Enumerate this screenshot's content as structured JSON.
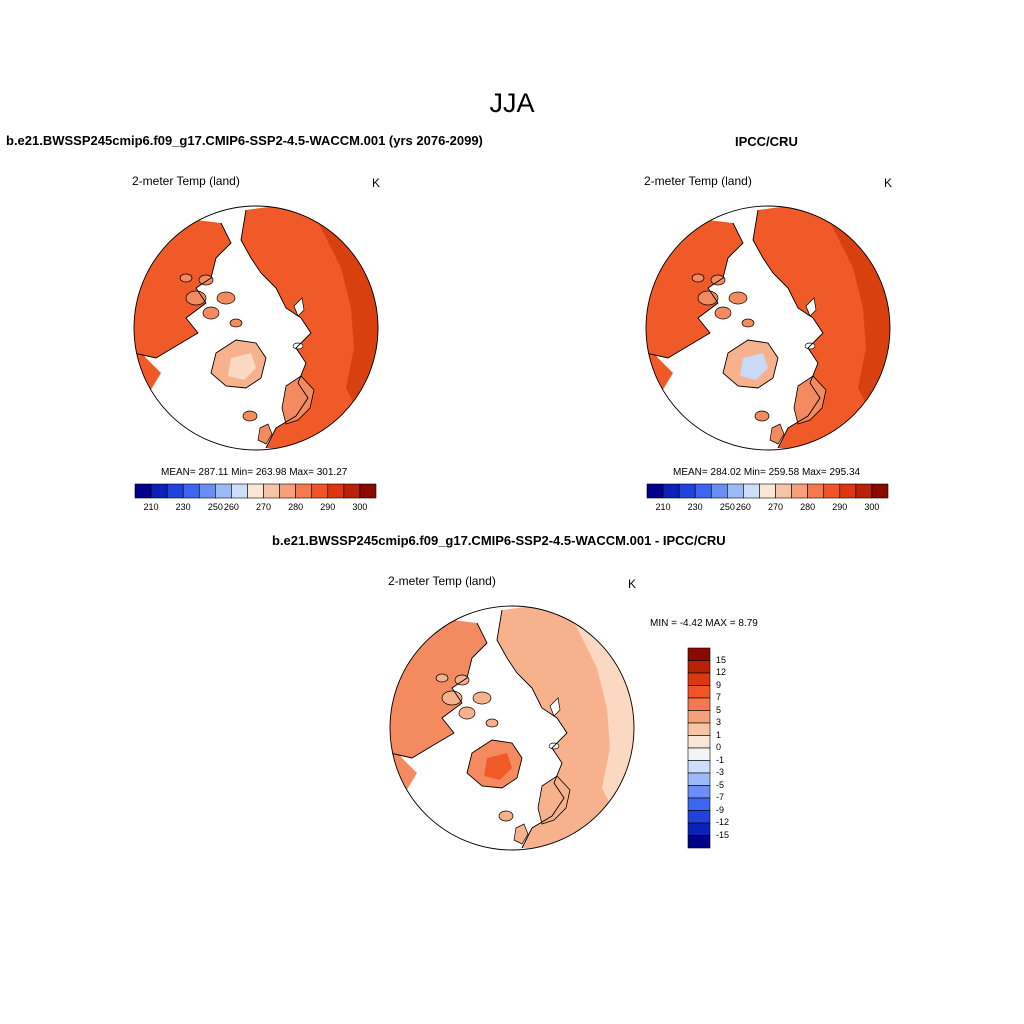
{
  "title": "JJA",
  "panels": [
    {
      "title": "b.e21.BWSSP245cmip6.f09_g17.CMIP6-SSP2-4.5-WACCM.001 (yrs 2076-2099)",
      "variable": "2-meter Temp (land)",
      "units": "K",
      "stats": "MEAN= 287.11  Min= 263.98  Max= 301.27"
    },
    {
      "title": "IPCC/CRU",
      "variable": "2-meter Temp (land)",
      "units": "K",
      "stats": "MEAN= 284.02  Min= 259.58  Max= 295.34"
    },
    {
      "title": "b.e21.BWSSP245cmip6.f09_g17.CMIP6-SSP2-4.5-WACCM.001 - IPCC/CRU",
      "variable": "2-meter Temp (land)",
      "units": "K",
      "stats": "MIN =  -4.42 MAX =   8.79"
    }
  ],
  "abs_colorbar": {
    "labels": [
      "210",
      "230",
      "250",
      "260",
      "270",
      "280",
      "290",
      "300"
    ],
    "colors": [
      "#00008b",
      "#0a22b8",
      "#1f43dc",
      "#3c66ef",
      "#6a8ef4",
      "#9dbaf8",
      "#cddef9",
      "#fbe6d6",
      "#f8c4a6",
      "#f5a07a",
      "#f37a4e",
      "#ef5527",
      "#dd3710",
      "#b82207",
      "#8b0a00"
    ]
  },
  "diff_colorbar": {
    "labels": [
      "15",
      "12",
      "9",
      "7",
      "5",
      "3",
      "1",
      "0",
      "-1",
      "-3",
      "-5",
      "-7",
      "-9",
      "-12",
      "-15"
    ],
    "colors": [
      "#8b0a00",
      "#b82207",
      "#dd3710",
      "#ef5527",
      "#f37a4e",
      "#f5a07a",
      "#f8c4a6",
      "#fbe6d6",
      "#f4f4f4",
      "#cddef9",
      "#9dbaf8",
      "#6a8ef4",
      "#3c66ef",
      "#1f43dc",
      "#0a22b8",
      "#00008b"
    ]
  },
  "map_colors": {
    "warm_dark": "#d8400f",
    "warm_mid": "#ef5a28",
    "warm_light": "#f48a60",
    "warm_pale": "#f7b28d",
    "warm_faint": "#fbd8c2",
    "cool_pale": "#c8daf5",
    "cool_light": "#9cbcec"
  }
}
